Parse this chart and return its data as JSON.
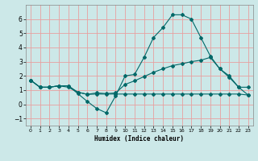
{
  "xlabel": "Humidex (Indice chaleur)",
  "ylabel": "",
  "bg_color": "#cce8e8",
  "grid_color": "#e8a0a0",
  "line_color": "#006868",
  "xlim": [
    -0.5,
    23.5
  ],
  "ylim": [
    -1.5,
    7.0
  ],
  "x_ticks": [
    0,
    1,
    2,
    3,
    4,
    5,
    6,
    7,
    8,
    9,
    10,
    11,
    12,
    13,
    14,
    15,
    16,
    17,
    18,
    19,
    20,
    21,
    22,
    23
  ],
  "y_ticks": [
    -1,
    0,
    1,
    2,
    3,
    4,
    5,
    6
  ],
  "series1_x": [
    0,
    1,
    2,
    3,
    4,
    5,
    6,
    7,
    8,
    9,
    10,
    11,
    12,
    13,
    14,
    15,
    16,
    17,
    18,
    19,
    20,
    21,
    22,
    23
  ],
  "series1_y": [
    1.7,
    1.2,
    1.2,
    1.3,
    1.3,
    0.75,
    0.2,
    -0.3,
    -0.6,
    0.6,
    2.0,
    2.1,
    3.3,
    4.7,
    5.4,
    6.3,
    6.3,
    6.0,
    4.7,
    3.4,
    2.5,
    1.9,
    1.2,
    1.2
  ],
  "series2_x": [
    0,
    1,
    2,
    3,
    4,
    5,
    6,
    7,
    8,
    9,
    10,
    11,
    12,
    13,
    14,
    15,
    16,
    17,
    18,
    19,
    20,
    21,
    22,
    23
  ],
  "series2_y": [
    1.7,
    1.2,
    1.2,
    1.3,
    1.3,
    0.85,
    0.7,
    0.8,
    0.75,
    0.8,
    1.4,
    1.65,
    1.95,
    2.25,
    2.5,
    2.72,
    2.85,
    3.0,
    3.1,
    3.3,
    2.5,
    2.0,
    1.2,
    0.65
  ],
  "series3_x": [
    0,
    1,
    2,
    3,
    4,
    5,
    6,
    7,
    8,
    9,
    10,
    11,
    12,
    13,
    14,
    15,
    16,
    17,
    18,
    19,
    20,
    21,
    22,
    23
  ],
  "series3_y": [
    1.7,
    1.2,
    1.2,
    1.3,
    1.2,
    0.85,
    0.7,
    0.72,
    0.72,
    0.72,
    0.72,
    0.72,
    0.72,
    0.72,
    0.72,
    0.72,
    0.72,
    0.72,
    0.72,
    0.72,
    0.72,
    0.72,
    0.72,
    0.65
  ]
}
